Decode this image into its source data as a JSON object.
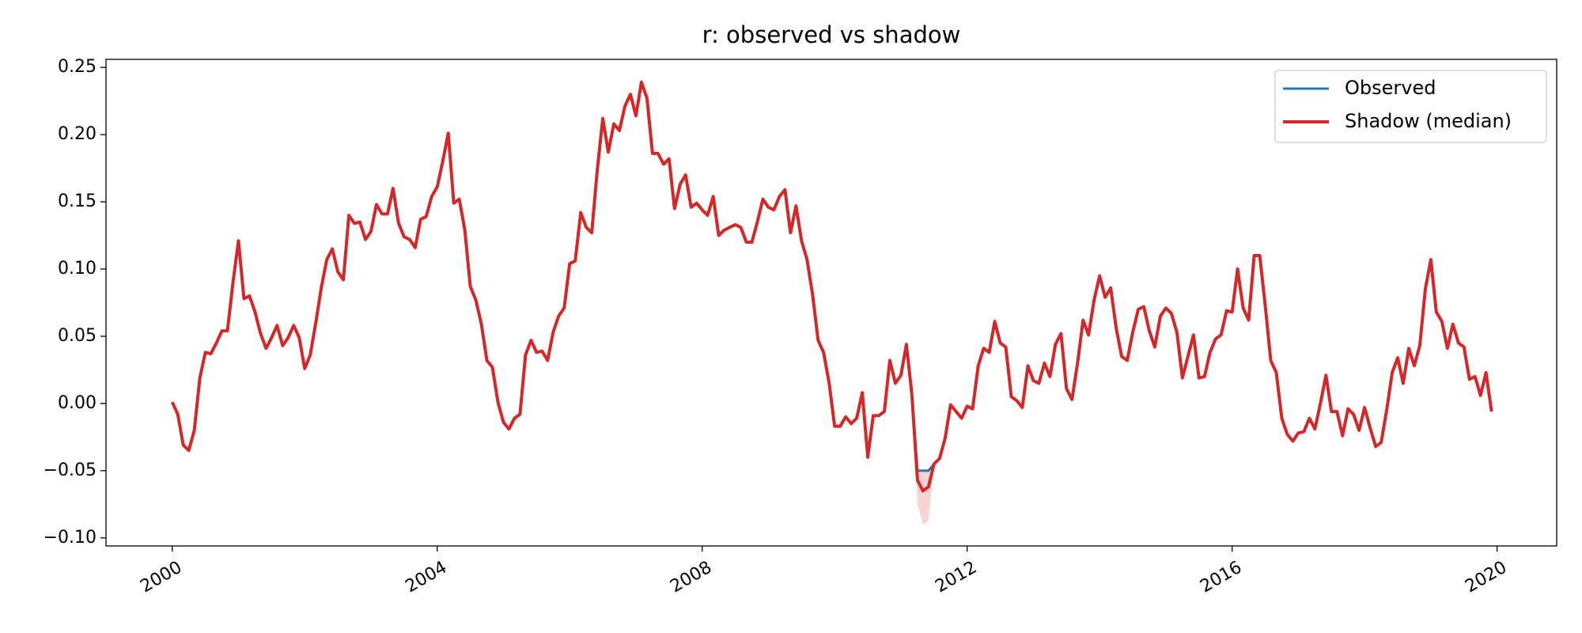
{
  "chart_data": {
    "type": "line",
    "title": "r: observed vs shadow",
    "x": [
      2000,
      2000.083,
      2000.167,
      2000.25,
      2000.333,
      2000.417,
      2000.5,
      2000.583,
      2000.667,
      2000.75,
      2000.833,
      2000.917,
      2001,
      2001.083,
      2001.167,
      2001.25,
      2001.333,
      2001.417,
      2001.5,
      2001.583,
      2001.667,
      2001.75,
      2001.833,
      2001.917,
      2002,
      2002.083,
      2002.167,
      2002.25,
      2002.333,
      2002.417,
      2002.5,
      2002.583,
      2002.667,
      2002.75,
      2002.833,
      2002.917,
      2003,
      2003.083,
      2003.167,
      2003.25,
      2003.333,
      2003.417,
      2003.5,
      2003.583,
      2003.667,
      2003.75,
      2003.833,
      2003.917,
      2004,
      2004.083,
      2004.167,
      2004.25,
      2004.333,
      2004.417,
      2004.5,
      2004.583,
      2004.667,
      2004.75,
      2004.833,
      2004.917,
      2005,
      2005.083,
      2005.167,
      2005.25,
      2005.333,
      2005.417,
      2005.5,
      2005.583,
      2005.667,
      2005.75,
      2005.833,
      2005.917,
      2006,
      2006.083,
      2006.167,
      2006.25,
      2006.333,
      2006.417,
      2006.5,
      2006.583,
      2006.667,
      2006.75,
      2006.833,
      2006.917,
      2007,
      2007.083,
      2007.167,
      2007.25,
      2007.333,
      2007.417,
      2007.5,
      2007.583,
      2007.667,
      2007.75,
      2007.833,
      2007.917,
      2008,
      2008.083,
      2008.167,
      2008.25,
      2008.333,
      2008.417,
      2008.5,
      2008.583,
      2008.667,
      2008.75,
      2008.833,
      2008.917,
      2009,
      2009.083,
      2009.167,
      2009.25,
      2009.333,
      2009.417,
      2009.5,
      2009.583,
      2009.667,
      2009.75,
      2009.833,
      2009.917,
      2010,
      2010.083,
      2010.167,
      2010.25,
      2010.333,
      2010.417,
      2010.5,
      2010.583,
      2010.667,
      2010.75,
      2010.833,
      2010.917,
      2011,
      2011.083,
      2011.167,
      2011.25,
      2011.333,
      2011.417,
      2011.5,
      2011.583,
      2011.667,
      2011.75,
      2011.833,
      2011.917,
      2012,
      2012.083,
      2012.167,
      2012.25,
      2012.333,
      2012.417,
      2012.5,
      2012.583,
      2012.667,
      2012.75,
      2012.833,
      2012.917,
      2013,
      2013.083,
      2013.167,
      2013.25,
      2013.333,
      2013.417,
      2013.5,
      2013.583,
      2013.667,
      2013.75,
      2013.833,
      2013.917,
      2014,
      2014.083,
      2014.167,
      2014.25,
      2014.333,
      2014.417,
      2014.5,
      2014.583,
      2014.667,
      2014.75,
      2014.833,
      2014.917,
      2015,
      2015.083,
      2015.167,
      2015.25,
      2015.333,
      2015.417,
      2015.5,
      2015.583,
      2015.667,
      2015.75,
      2015.833,
      2015.917,
      2016,
      2016.083,
      2016.167,
      2016.25,
      2016.333,
      2016.417,
      2016.5,
      2016.583,
      2016.667,
      2016.75,
      2016.833,
      2016.917,
      2017,
      2017.083,
      2017.167,
      2017.25,
      2017.333,
      2017.417,
      2017.5,
      2017.583,
      2017.667,
      2017.75,
      2017.833,
      2017.917,
      2018,
      2018.083,
      2018.167,
      2018.25,
      2018.333,
      2018.417,
      2018.5,
      2018.583,
      2018.667,
      2018.75,
      2018.833,
      2018.917,
      2019,
      2019.083,
      2019.167,
      2019.25,
      2019.333,
      2019.417,
      2019.5,
      2019.583,
      2019.667,
      2019.75,
      2019.833,
      2019.917
    ],
    "series": [
      {
        "name": "Observed",
        "color": "#1f77b4",
        "values": [
          0.001,
          -0.008,
          -0.031,
          -0.035,
          -0.02,
          0.019,
          0.038,
          0.037,
          0.045,
          0.054,
          0.054,
          0.09,
          0.121,
          0.078,
          0.08,
          0.068,
          0.052,
          0.041,
          0.049,
          0.058,
          0.043,
          0.049,
          0.058,
          0.049,
          0.026,
          0.036,
          0.06,
          0.086,
          0.107,
          0.115,
          0.098,
          0.092,
          0.14,
          0.134,
          0.135,
          0.122,
          0.128,
          0.148,
          0.141,
          0.141,
          0.16,
          0.134,
          0.124,
          0.122,
          0.116,
          0.137,
          0.139,
          0.154,
          0.161,
          0.18,
          0.201,
          0.149,
          0.152,
          0.129,
          0.087,
          0.077,
          0.059,
          0.032,
          0.027,
          0.001,
          -0.014,
          -0.019,
          -0.011,
          -0.008,
          0.036,
          0.047,
          0.038,
          0.039,
          0.032,
          0.053,
          0.065,
          0.071,
          0.104,
          0.106,
          0.142,
          0.131,
          0.127,
          0.174,
          0.212,
          0.187,
          0.208,
          0.203,
          0.221,
          0.23,
          0.214,
          0.239,
          0.227,
          0.186,
          0.186,
          0.178,
          0.182,
          0.145,
          0.163,
          0.17,
          0.146,
          0.149,
          0.144,
          0.14,
          0.154,
          0.125,
          0.129,
          0.131,
          0.133,
          0.131,
          0.12,
          0.12,
          0.135,
          0.152,
          0.146,
          0.144,
          0.154,
          0.159,
          0.127,
          0.147,
          0.121,
          0.107,
          0.081,
          0.047,
          0.038,
          0.015,
          -0.017,
          -0.017,
          -0.01,
          -0.015,
          -0.011,
          0.008,
          -0.04,
          -0.009,
          -0.009,
          -0.006,
          0.032,
          0.015,
          0.021,
          0.044,
          0.006,
          -0.05,
          -0.05,
          -0.05,
          -0.045,
          -0.041,
          -0.026,
          -0.001,
          -0.006,
          -0.011,
          -0.002,
          -0.004,
          0.028,
          0.041,
          0.038,
          0.061,
          0.045,
          0.042,
          0.005,
          0.002,
          -0.003,
          0.028,
          0.017,
          0.015,
          0.03,
          0.02,
          0.044,
          0.052,
          0.011,
          0.003,
          0.03,
          0.062,
          0.051,
          0.077,
          0.095,
          0.079,
          0.086,
          0.056,
          0.035,
          0.032,
          0.053,
          0.07,
          0.072,
          0.054,
          0.042,
          0.065,
          0.071,
          0.067,
          0.053,
          0.019,
          0.035,
          0.051,
          0.019,
          0.02,
          0.038,
          0.048,
          0.051,
          0.069,
          0.068,
          0.1,
          0.071,
          0.062,
          0.11,
          0.11,
          0.073,
          0.032,
          0.023,
          -0.011,
          -0.023,
          -0.028,
          -0.022,
          -0.021,
          -0.011,
          -0.019,
          0.0,
          0.021,
          -0.006,
          -0.006,
          -0.024,
          -0.004,
          -0.008,
          -0.02,
          -0.003,
          -0.018,
          -0.032,
          -0.029,
          -0.005,
          0.023,
          0.034,
          0.015,
          0.041,
          0.028,
          0.043,
          0.085,
          0.107,
          0.068,
          0.061,
          0.041,
          0.059,
          0.045,
          0.042,
          0.018,
          0.02,
          0.006,
          0.023,
          -0.006
        ]
      },
      {
        "name": "Shadow (median)",
        "color": "#d62728",
        "values": [
          0.001,
          -0.008,
          -0.031,
          -0.035,
          -0.02,
          0.019,
          0.038,
          0.037,
          0.045,
          0.054,
          0.054,
          0.09,
          0.121,
          0.078,
          0.08,
          0.068,
          0.052,
          0.041,
          0.049,
          0.058,
          0.043,
          0.049,
          0.058,
          0.049,
          0.026,
          0.036,
          0.06,
          0.086,
          0.107,
          0.115,
          0.098,
          0.092,
          0.14,
          0.134,
          0.135,
          0.122,
          0.128,
          0.148,
          0.141,
          0.141,
          0.16,
          0.134,
          0.124,
          0.122,
          0.116,
          0.137,
          0.139,
          0.154,
          0.161,
          0.18,
          0.201,
          0.149,
          0.152,
          0.129,
          0.087,
          0.077,
          0.059,
          0.032,
          0.027,
          0.001,
          -0.014,
          -0.019,
          -0.011,
          -0.008,
          0.036,
          0.047,
          0.038,
          0.039,
          0.032,
          0.053,
          0.065,
          0.071,
          0.104,
          0.106,
          0.142,
          0.131,
          0.127,
          0.174,
          0.212,
          0.187,
          0.208,
          0.203,
          0.221,
          0.23,
          0.214,
          0.239,
          0.227,
          0.186,
          0.186,
          0.178,
          0.182,
          0.145,
          0.163,
          0.17,
          0.146,
          0.149,
          0.144,
          0.14,
          0.154,
          0.125,
          0.129,
          0.131,
          0.133,
          0.131,
          0.12,
          0.12,
          0.135,
          0.152,
          0.146,
          0.144,
          0.154,
          0.159,
          0.127,
          0.147,
          0.121,
          0.107,
          0.081,
          0.047,
          0.038,
          0.015,
          -0.017,
          -0.017,
          -0.01,
          -0.015,
          -0.011,
          0.008,
          -0.04,
          -0.009,
          -0.009,
          -0.006,
          0.032,
          0.015,
          0.021,
          0.044,
          0.006,
          -0.057,
          -0.065,
          -0.062,
          -0.045,
          -0.041,
          -0.026,
          -0.001,
          -0.006,
          -0.011,
          -0.002,
          -0.004,
          0.028,
          0.041,
          0.038,
          0.061,
          0.045,
          0.042,
          0.005,
          0.002,
          -0.003,
          0.028,
          0.017,
          0.015,
          0.03,
          0.02,
          0.044,
          0.052,
          0.011,
          0.003,
          0.03,
          0.062,
          0.051,
          0.077,
          0.095,
          0.079,
          0.086,
          0.056,
          0.035,
          0.032,
          0.053,
          0.07,
          0.072,
          0.054,
          0.042,
          0.065,
          0.071,
          0.067,
          0.053,
          0.019,
          0.035,
          0.051,
          0.019,
          0.02,
          0.038,
          0.048,
          0.051,
          0.069,
          0.068,
          0.1,
          0.071,
          0.062,
          0.11,
          0.11,
          0.073,
          0.032,
          0.023,
          -0.011,
          -0.023,
          -0.028,
          -0.022,
          -0.021,
          -0.011,
          -0.019,
          0.0,
          0.021,
          -0.006,
          -0.006,
          -0.024,
          -0.004,
          -0.008,
          -0.02,
          -0.003,
          -0.018,
          -0.032,
          -0.029,
          -0.005,
          0.023,
          0.034,
          0.015,
          0.041,
          0.028,
          0.043,
          0.085,
          0.107,
          0.068,
          0.061,
          0.041,
          0.059,
          0.045,
          0.042,
          0.018,
          0.02,
          0.006,
          0.023,
          -0.006
        ]
      }
    ],
    "band": {
      "color": "#d62728",
      "x": [
        2011.167,
        2011.25,
        2011.333,
        2011.417,
        2011.5
      ],
      "lower": [
        0.006,
        -0.075,
        -0.09,
        -0.087,
        -0.045
      ],
      "upper": [
        0.006,
        -0.05,
        -0.05,
        -0.05,
        -0.045
      ]
    },
    "xlim": [
      1999.0,
      2020.9
    ],
    "xticks": [
      2000,
      2004,
      2008,
      2012,
      2016,
      2020
    ],
    "ylim": [
      -0.106,
      0.256
    ],
    "yticks": [
      {
        "value": -0.1,
        "label": "−0.10"
      },
      {
        "value": -0.05,
        "label": "−0.05"
      },
      {
        "value": 0,
        "label": "0.00"
      },
      0.05,
      {
        "value": 0.1,
        "label": "0.10"
      },
      0.15,
      {
        "value": 0.2,
        "label": "0.20"
      },
      0.25
    ],
    "grid": false,
    "legend": "upper right"
  }
}
